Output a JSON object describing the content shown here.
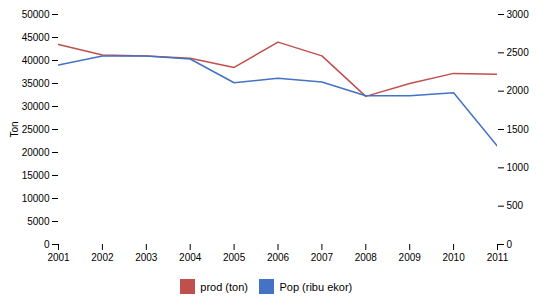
{
  "chart_data": {
    "type": "line",
    "x": [
      2001,
      2002,
      2003,
      2004,
      2005,
      2006,
      2007,
      2008,
      2009,
      2010,
      2011
    ],
    "xlim": [
      2001,
      2011
    ],
    "xticks": [
      2001,
      2002,
      2003,
      2004,
      2005,
      2006,
      2007,
      2008,
      2009,
      2010,
      2011
    ],
    "ylabel": "Ton",
    "ylim": [
      0,
      50000
    ],
    "yticks": [
      0,
      5000,
      10000,
      15000,
      20000,
      25000,
      30000,
      35000,
      40000,
      45000,
      50000
    ],
    "y2lim": [
      0,
      3000
    ],
    "y2ticks": [
      0,
      500,
      1000,
      1500,
      2000,
      2500,
      3000
    ],
    "series": [
      {
        "name": "prod (ton)",
        "color": "#c0504d",
        "axis": "y",
        "values": [
          43500,
          41200,
          41000,
          40500,
          38500,
          44000,
          41000,
          32200,
          35000,
          37200,
          37000
        ]
      },
      {
        "name": "Pop (ribu ekor)",
        "color": "#4472c4",
        "axis": "y2",
        "values": [
          2340,
          2460,
          2460,
          2420,
          2110,
          2170,
          2120,
          1940,
          1940,
          1980,
          1280
        ]
      }
    ],
    "grid": false,
    "legend": "bottom"
  }
}
